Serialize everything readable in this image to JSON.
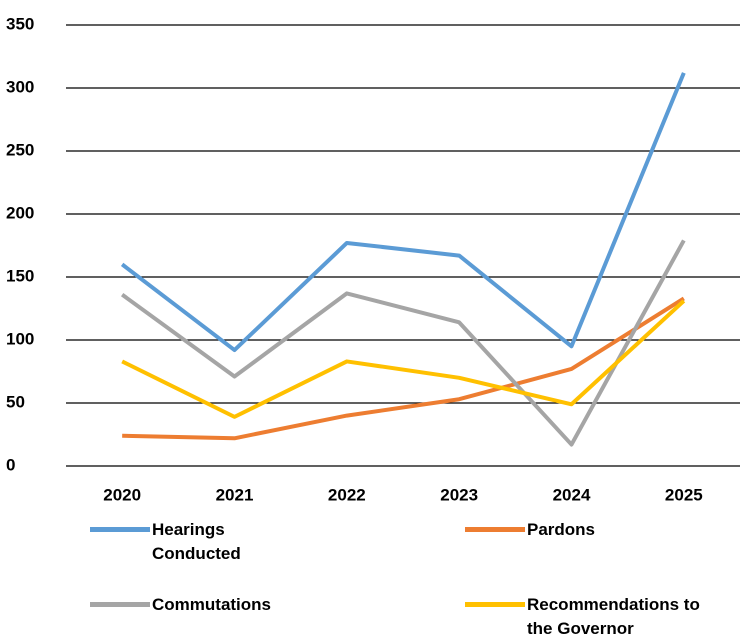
{
  "chart_data": {
    "type": "line",
    "categories": [
      "2020",
      "2021",
      "2022",
      "2023",
      "2024",
      "2025"
    ],
    "series": [
      {
        "name": "Hearings Conducted",
        "color": "#5b9bd5",
        "values": [
          160,
          92,
          177,
          167,
          95,
          312
        ]
      },
      {
        "name": "Pardons",
        "color": "#ed7d31",
        "values": [
          24,
          22,
          40,
          53,
          77,
          133
        ]
      },
      {
        "name": "Commutations",
        "color": "#a5a5a5",
        "values": [
          136,
          71,
          137,
          114,
          17,
          179
        ]
      },
      {
        "name": "Recommendations to the Governor",
        "color": "#ffc000",
        "values": [
          83,
          39,
          83,
          70,
          49,
          131
        ]
      }
    ],
    "ylim": [
      0,
      350
    ],
    "yticks": [
      0,
      50,
      100,
      150,
      200,
      250,
      300,
      350
    ],
    "grid": true,
    "legend": "bottom"
  }
}
